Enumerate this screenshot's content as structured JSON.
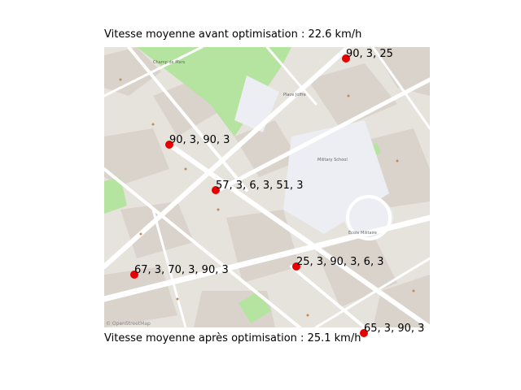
{
  "titles": {
    "before": "Vitesse moyenne avant optimisation : 22.6 km/h",
    "after": "Vitesse moyenne après optimisation : 25.1 km/h"
  },
  "map": {
    "attribution": "© OpenStreetMap",
    "colors": {
      "background": "#e6e2dc",
      "block": "#d9d3cb",
      "road": "#ffffff",
      "park": "#b5e3a0",
      "plaza": "#eceef4",
      "marker": "#e60000"
    },
    "place_labels": [
      "Military School",
      "Champ de Mars",
      "École Militaire",
      "Place Joffre"
    ]
  },
  "intersections": [
    {
      "label": "90, 3, 25"
    },
    {
      "label": "90, 3, 90, 3"
    },
    {
      "label": "57, 3, 6, 3, 51, 3"
    },
    {
      "label": "67, 3, 70, 3, 90, 3"
    },
    {
      "label": "25, 3, 90, 3, 6, 3"
    },
    {
      "label": "65, 3, 90, 3"
    }
  ]
}
